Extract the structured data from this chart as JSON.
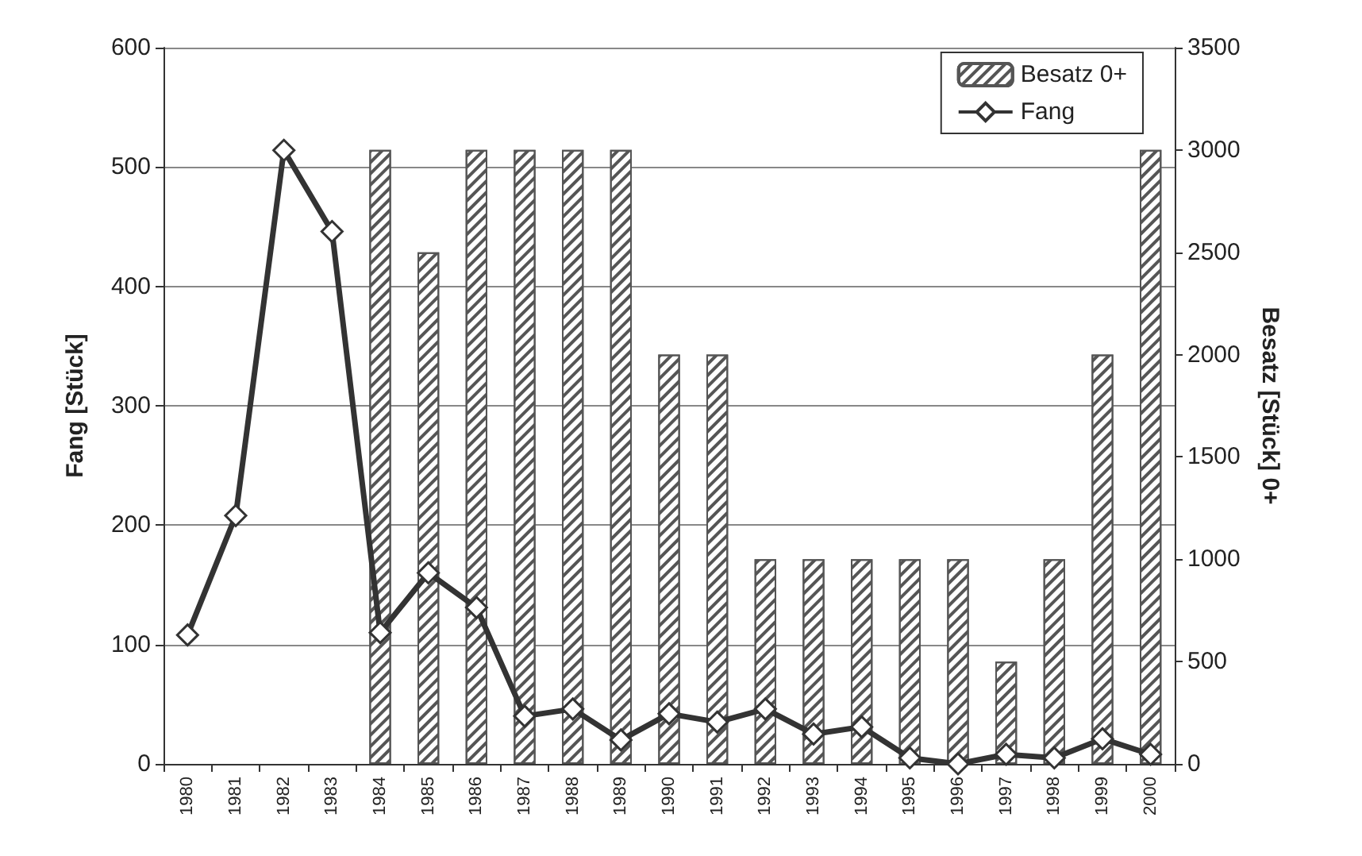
{
  "chart_data": {
    "type": "bar",
    "categories": [
      "1980",
      "1981",
      "1982",
      "1983",
      "1984",
      "1985",
      "1986",
      "1987",
      "1988",
      "1989",
      "1990",
      "1991",
      "1992",
      "1993",
      "1994",
      "1995",
      "1996",
      "1997",
      "1998",
      "1999",
      "2000"
    ],
    "series": [
      {
        "name": "Besatz 0+",
        "axis": "y2",
        "color": "#555555",
        "values": [
          null,
          null,
          null,
          null,
          3000,
          2500,
          3000,
          3000,
          3000,
          3000,
          2000,
          2000,
          1000,
          1000,
          1000,
          1000,
          1000,
          500,
          1000,
          2000,
          3000
        ]
      },
      {
        "name": "Fang",
        "type": "line",
        "color": "#333333",
        "marker": "diamond",
        "values": [
          108,
          208,
          514,
          446,
          110,
          160,
          131,
          40,
          46,
          20,
          42,
          35,
          46,
          25,
          31,
          5,
          0,
          8,
          5,
          21,
          8
        ]
      }
    ],
    "ylabel": "Fang [Stück]",
    "y2label": "Besatz [Stück] 0+",
    "ylim": [
      0,
      600
    ],
    "yticks": [
      0,
      100,
      200,
      300,
      400,
      500,
      600
    ],
    "y2lim": [
      0,
      3500
    ],
    "y2ticks": [
      0,
      500,
      1000,
      1500,
      2000,
      2500,
      3000,
      3500
    ],
    "grid": "y",
    "legend": "top right"
  }
}
